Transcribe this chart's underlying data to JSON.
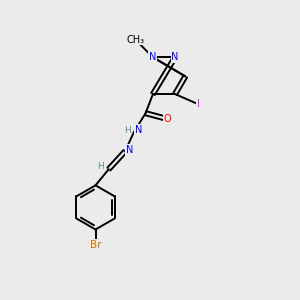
{
  "background_color": "#ebebeb",
  "bond_color": "#000000",
  "atom_colors": {
    "N": "#0000ff",
    "O": "#ff0000",
    "Br": "#cc7700",
    "I": "#ff00ff",
    "H": "#5a9090",
    "C": "#000000"
  },
  "figsize": [
    3.0,
    3.0
  ],
  "dpi": 100,
  "lw": 1.4,
  "fs": 7.0
}
